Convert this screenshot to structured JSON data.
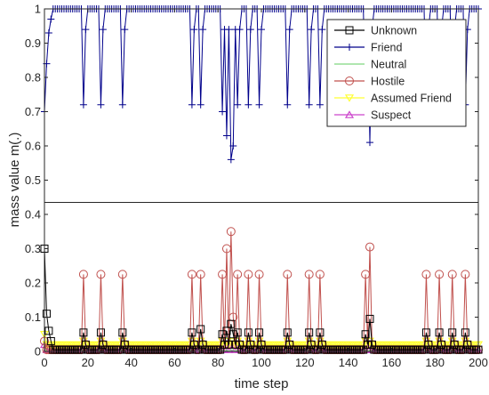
{
  "chart_data": {
    "type": "line",
    "title": "",
    "xlabel": "time step",
    "ylabel": "mass value m(.)",
    "xlim": [
      0,
      200
    ],
    "ylim": [
      0,
      1
    ],
    "axis_break": {
      "lower_max": 0.4,
      "upper_min": 0.5
    },
    "x_ticks": [
      0,
      20,
      40,
      60,
      80,
      100,
      120,
      140,
      160,
      180,
      200
    ],
    "y_ticks": [
      0,
      0.1,
      0.2,
      0.3,
      0.4,
      0.5,
      0.6,
      0.7,
      0.8,
      0.9,
      1
    ],
    "x_tick_labels": [
      "0",
      "20",
      "40",
      "60",
      "80",
      "100",
      "120",
      "140",
      "160",
      "180",
      "200"
    ],
    "y_tick_labels": [
      "0",
      "0.1",
      "0.2",
      "0.3",
      "0.4",
      "0.5",
      "0.6",
      "0.7",
      "0.8",
      "0.9",
      "1"
    ],
    "grid": false,
    "legend_position": "top-right",
    "events": [
      {
        "t": 18,
        "friend": 0.72,
        "hostile": 0.225,
        "unknown": 0.055
      },
      {
        "t": 26,
        "friend": 0.72,
        "hostile": 0.225,
        "unknown": 0.055
      },
      {
        "t": 36,
        "friend": 0.72,
        "hostile": 0.225,
        "unknown": 0.055
      },
      {
        "t": 68,
        "friend": 0.72,
        "hostile": 0.225,
        "unknown": 0.055
      },
      {
        "t": 72,
        "friend": 0.72,
        "hostile": 0.225,
        "unknown": 0.065
      },
      {
        "t": 82,
        "friend": 0.7,
        "hostile": 0.225,
        "unknown": 0.05
      },
      {
        "t": 84,
        "friend": 0.63,
        "hostile": 0.3,
        "unknown": 0.06
      },
      {
        "t": 86,
        "friend": 0.56,
        "hostile": 0.35,
        "unknown": 0.08
      },
      {
        "t": 87,
        "friend": 0.6,
        "hostile": 0.1,
        "unknown": 0.05
      },
      {
        "t": 89,
        "friend": 0.72,
        "hostile": 0.225,
        "unknown": 0.055
      },
      {
        "t": 94,
        "friend": 0.72,
        "hostile": 0.225,
        "unknown": 0.055
      },
      {
        "t": 99,
        "friend": 0.72,
        "hostile": 0.225,
        "unknown": 0.055
      },
      {
        "t": 112,
        "friend": 0.72,
        "hostile": 0.225,
        "unknown": 0.055
      },
      {
        "t": 122,
        "friend": 0.72,
        "hostile": 0.225,
        "unknown": 0.055
      },
      {
        "t": 127,
        "friend": 0.72,
        "hostile": 0.225,
        "unknown": 0.055
      },
      {
        "t": 148,
        "friend": 0.7,
        "hostile": 0.225,
        "unknown": 0.05
      },
      {
        "t": 150,
        "friend": 0.61,
        "hostile": 0.305,
        "unknown": 0.095
      },
      {
        "t": 176,
        "friend": 0.72,
        "hostile": 0.225,
        "unknown": 0.055
      },
      {
        "t": 182,
        "friend": 0.72,
        "hostile": 0.225,
        "unknown": 0.055
      },
      {
        "t": 188,
        "friend": 0.72,
        "hostile": 0.225,
        "unknown": 0.055
      },
      {
        "t": 194,
        "friend": 0.72,
        "hostile": 0.225,
        "unknown": 0.055
      }
    ],
    "series": [
      {
        "name": "Unknown",
        "color": "#000000",
        "marker": "square",
        "initial_value": 0.3,
        "baseline": 0.005
      },
      {
        "name": "Friend",
        "color": "#00008b",
        "marker": "plus",
        "initial_value": 0.7,
        "baseline": 1.0
      },
      {
        "name": "Neutral",
        "color": "#7fd67f",
        "marker": "none",
        "initial_value": 0.01,
        "baseline": 0.0
      },
      {
        "name": "Hostile",
        "color": "#c0504d",
        "marker": "circle",
        "initial_value": 0.03,
        "baseline": 0.005
      },
      {
        "name": "Assumed Friend",
        "color": "#ffff33",
        "marker": "triangle-down",
        "initial_value": 0.05,
        "baseline": 0.02
      },
      {
        "name": "Suspect",
        "color": "#cc44cc",
        "marker": "triangle-up",
        "initial_value": 0.02,
        "baseline": 0.005
      }
    ]
  }
}
